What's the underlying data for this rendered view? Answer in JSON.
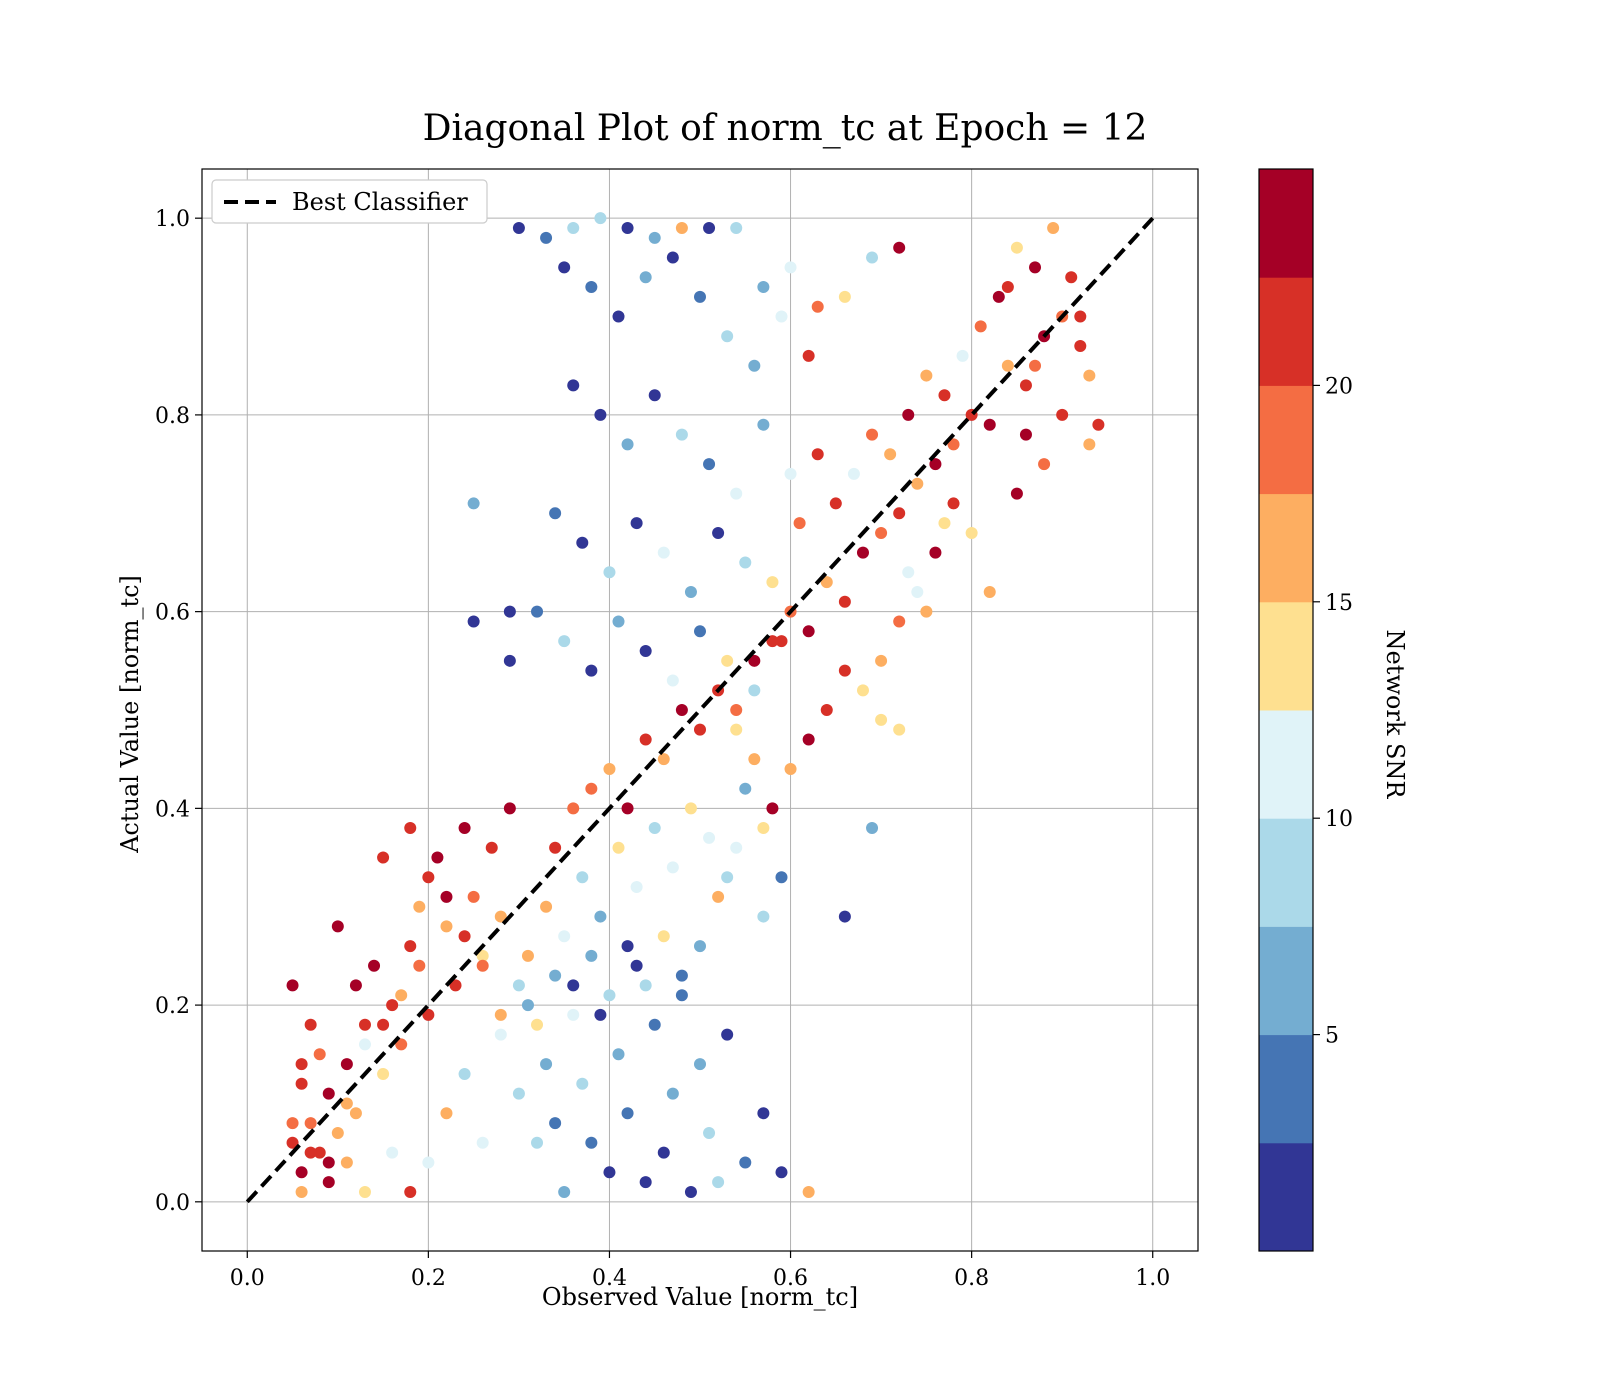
{
  "chart_data": {
    "type": "scatter",
    "title": "Diagonal Plot of norm_tc at Epoch = 12",
    "xlabel": "Observed Value [norm_tc]",
    "ylabel": "Actual Value [norm_tc]",
    "xlim": [
      -0.05,
      1.05
    ],
    "ylim": [
      -0.05,
      1.05
    ],
    "xticks": [
      "0.0",
      "0.2",
      "0.4",
      "0.6",
      "0.8",
      "1.0"
    ],
    "yticks": [
      "0.0",
      "0.2",
      "0.4",
      "0.6",
      "0.8",
      "1.0"
    ],
    "grid": true,
    "legend": {
      "position": "top-left",
      "label": "Best Classifier"
    },
    "reference_line": {
      "from": [
        0,
        0
      ],
      "to": [
        1,
        1
      ],
      "style": "dashed",
      "color": "#000000"
    },
    "colorbar": {
      "label": "Network SNR",
      "range": [
        0,
        25
      ],
      "ticks": [
        "5",
        "10",
        "15",
        "20"
      ],
      "colors": [
        "#313695",
        "#4575b4",
        "#74add1",
        "#abd9e9",
        "#e0f3f8",
        "#fee090",
        "#fdae61",
        "#f46d43",
        "#d73027",
        "#a50026"
      ]
    },
    "points": [
      [
        0.05,
        0.06,
        22
      ],
      [
        0.06,
        0.03,
        23
      ],
      [
        0.07,
        0.08,
        18
      ],
      [
        0.08,
        0.05,
        21
      ],
      [
        0.09,
        0.11,
        24
      ],
      [
        0.1,
        0.07,
        16
      ],
      [
        0.06,
        0.12,
        20
      ],
      [
        0.11,
        0.14,
        23
      ],
      [
        0.12,
        0.09,
        17
      ],
      [
        0.13,
        0.18,
        22
      ],
      [
        0.08,
        0.15,
        19
      ],
      [
        0.15,
        0.13,
        14
      ],
      [
        0.16,
        0.2,
        21
      ],
      [
        0.14,
        0.24,
        23
      ],
      [
        0.17,
        0.16,
        18
      ],
      [
        0.18,
        0.26,
        20
      ],
      [
        0.19,
        0.3,
        16
      ],
      [
        0.2,
        0.19,
        22
      ],
      [
        0.21,
        0.35,
        24
      ],
      [
        0.22,
        0.28,
        15
      ],
      [
        0.23,
        0.22,
        21
      ],
      [
        0.24,
        0.38,
        23
      ],
      [
        0.25,
        0.31,
        19
      ],
      [
        0.26,
        0.25,
        13
      ],
      [
        0.27,
        0.36,
        22
      ],
      [
        0.28,
        0.29,
        17
      ],
      [
        0.29,
        0.4,
        24
      ],
      [
        0.1,
        0.28,
        23
      ],
      [
        0.12,
        0.22,
        24
      ],
      [
        0.15,
        0.35,
        21
      ],
      [
        0.18,
        0.38,
        20
      ],
      [
        0.05,
        0.22,
        23
      ],
      [
        0.07,
        0.18,
        22
      ],
      [
        0.09,
        0.02,
        24
      ],
      [
        0.06,
        0.01,
        16
      ],
      [
        0.11,
        0.04,
        15
      ],
      [
        0.13,
        0.01,
        13
      ],
      [
        0.16,
        0.05,
        12
      ],
      [
        0.18,
        0.01,
        21
      ],
      [
        0.2,
        0.04,
        10
      ],
      [
        0.22,
        0.09,
        16
      ],
      [
        0.24,
        0.13,
        9
      ],
      [
        0.26,
        0.06,
        12
      ],
      [
        0.28,
        0.17,
        11
      ],
      [
        0.3,
        0.11,
        8
      ],
      [
        0.31,
        0.2,
        7
      ],
      [
        0.32,
        0.06,
        9
      ],
      [
        0.33,
        0.14,
        5
      ],
      [
        0.34,
        0.08,
        3
      ],
      [
        0.35,
        0.01,
        6
      ],
      [
        0.36,
        0.22,
        2
      ],
      [
        0.37,
        0.12,
        8
      ],
      [
        0.38,
        0.06,
        4
      ],
      [
        0.39,
        0.19,
        1
      ],
      [
        0.4,
        0.03,
        2
      ],
      [
        0.41,
        0.15,
        5
      ],
      [
        0.42,
        0.09,
        3
      ],
      [
        0.43,
        0.24,
        1
      ],
      [
        0.44,
        0.02,
        2
      ],
      [
        0.45,
        0.18,
        4
      ],
      [
        0.46,
        0.05,
        1
      ],
      [
        0.47,
        0.11,
        6
      ],
      [
        0.48,
        0.21,
        3
      ],
      [
        0.49,
        0.01,
        2
      ],
      [
        0.5,
        0.14,
        5
      ],
      [
        0.51,
        0.07,
        9
      ],
      [
        0.52,
        0.02,
        8
      ],
      [
        0.53,
        0.17,
        2
      ],
      [
        0.55,
        0.04,
        3
      ],
      [
        0.57,
        0.09,
        1
      ],
      [
        0.59,
        0.03,
        2
      ],
      [
        0.62,
        0.01,
        16
      ],
      [
        0.31,
        0.25,
        15
      ],
      [
        0.33,
        0.3,
        17
      ],
      [
        0.35,
        0.27,
        12
      ],
      [
        0.37,
        0.33,
        9
      ],
      [
        0.39,
        0.29,
        7
      ],
      [
        0.41,
        0.36,
        13
      ],
      [
        0.43,
        0.32,
        10
      ],
      [
        0.45,
        0.38,
        8
      ],
      [
        0.47,
        0.34,
        11
      ],
      [
        0.49,
        0.4,
        14
      ],
      [
        0.51,
        0.37,
        12
      ],
      [
        0.53,
        0.33,
        9
      ],
      [
        0.55,
        0.42,
        7
      ],
      [
        0.57,
        0.38,
        13
      ],
      [
        0.34,
        0.36,
        22
      ],
      [
        0.36,
        0.4,
        19
      ],
      [
        0.38,
        0.42,
        18
      ],
      [
        0.4,
        0.44,
        16
      ],
      [
        0.42,
        0.4,
        23
      ],
      [
        0.44,
        0.47,
        21
      ],
      [
        0.46,
        0.45,
        17
      ],
      [
        0.48,
        0.5,
        24
      ],
      [
        0.5,
        0.48,
        20
      ],
      [
        0.52,
        0.52,
        22
      ],
      [
        0.54,
        0.5,
        18
      ],
      [
        0.56,
        0.55,
        24
      ],
      [
        0.58,
        0.57,
        21
      ],
      [
        0.6,
        0.6,
        19
      ],
      [
        0.62,
        0.58,
        23
      ],
      [
        0.64,
        0.63,
        17
      ],
      [
        0.66,
        0.61,
        22
      ],
      [
        0.68,
        0.66,
        24
      ],
      [
        0.7,
        0.68,
        18
      ],
      [
        0.72,
        0.7,
        21
      ],
      [
        0.74,
        0.73,
        16
      ],
      [
        0.76,
        0.75,
        23
      ],
      [
        0.78,
        0.77,
        19
      ],
      [
        0.8,
        0.8,
        22
      ],
      [
        0.82,
        0.79,
        24
      ],
      [
        0.84,
        0.85,
        17
      ],
      [
        0.86,
        0.83,
        21
      ],
      [
        0.88,
        0.88,
        23
      ],
      [
        0.9,
        0.9,
        18
      ],
      [
        0.92,
        0.87,
        22
      ],
      [
        0.87,
        0.95,
        24
      ],
      [
        0.89,
        0.99,
        16
      ],
      [
        0.91,
        0.94,
        20
      ],
      [
        0.85,
        0.97,
        13
      ],
      [
        0.83,
        0.92,
        23
      ],
      [
        0.81,
        0.89,
        18
      ],
      [
        0.79,
        0.86,
        12
      ],
      [
        0.77,
        0.82,
        21
      ],
      [
        0.75,
        0.84,
        17
      ],
      [
        0.73,
        0.8,
        24
      ],
      [
        0.71,
        0.76,
        15
      ],
      [
        0.69,
        0.78,
        19
      ],
      [
        0.67,
        0.74,
        11
      ],
      [
        0.65,
        0.71,
        22
      ],
      [
        0.82,
        0.62,
        16
      ],
      [
        0.8,
        0.68,
        14
      ],
      [
        0.78,
        0.71,
        21
      ],
      [
        0.76,
        0.66,
        23
      ],
      [
        0.74,
        0.62,
        12
      ],
      [
        0.72,
        0.59,
        18
      ],
      [
        0.7,
        0.55,
        15
      ],
      [
        0.68,
        0.52,
        13
      ],
      [
        0.66,
        0.54,
        22
      ],
      [
        0.64,
        0.5,
        20
      ],
      [
        0.62,
        0.47,
        24
      ],
      [
        0.6,
        0.44,
        16
      ],
      [
        0.58,
        0.4,
        23
      ],
      [
        0.56,
        0.45,
        17
      ],
      [
        0.54,
        0.48,
        14
      ],
      [
        0.85,
        0.72,
        23
      ],
      [
        0.88,
        0.75,
        18
      ],
      [
        0.9,
        0.8,
        21
      ],
      [
        0.93,
        0.84,
        17
      ],
      [
        0.94,
        0.79,
        20
      ],
      [
        0.93,
        0.77,
        16
      ],
      [
        0.92,
        0.9,
        22
      ],
      [
        0.86,
        0.78,
        24
      ],
      [
        0.84,
        0.93,
        22
      ],
      [
        0.87,
        0.85,
        19
      ],
      [
        0.72,
        0.48,
        13
      ],
      [
        0.7,
        0.49,
        14
      ],
      [
        0.75,
        0.6,
        16
      ],
      [
        0.73,
        0.64,
        10
      ],
      [
        0.77,
        0.69,
        13
      ],
      [
        0.3,
        0.99,
        2
      ],
      [
        0.33,
        0.98,
        3
      ],
      [
        0.36,
        0.99,
        8
      ],
      [
        0.39,
        1.0,
        9
      ],
      [
        0.42,
        0.99,
        2
      ],
      [
        0.45,
        0.98,
        6
      ],
      [
        0.48,
        0.99,
        17
      ],
      [
        0.51,
        0.99,
        1
      ],
      [
        0.54,
        0.99,
        9
      ],
      [
        0.57,
        0.93,
        7
      ],
      [
        0.6,
        0.95,
        11
      ],
      [
        0.63,
        0.91,
        19
      ],
      [
        0.66,
        0.92,
        13
      ],
      [
        0.69,
        0.96,
        8
      ],
      [
        0.72,
        0.97,
        24
      ],
      [
        0.35,
        0.95,
        1
      ],
      [
        0.38,
        0.93,
        3
      ],
      [
        0.41,
        0.9,
        2
      ],
      [
        0.44,
        0.94,
        5
      ],
      [
        0.47,
        0.96,
        1
      ],
      [
        0.5,
        0.92,
        4
      ],
      [
        0.53,
        0.88,
        9
      ],
      [
        0.56,
        0.85,
        6
      ],
      [
        0.59,
        0.9,
        12
      ],
      [
        0.62,
        0.86,
        20
      ],
      [
        0.36,
        0.83,
        2
      ],
      [
        0.39,
        0.8,
        1
      ],
      [
        0.42,
        0.77,
        5
      ],
      [
        0.45,
        0.82,
        2
      ],
      [
        0.48,
        0.78,
        9
      ],
      [
        0.51,
        0.75,
        3
      ],
      [
        0.54,
        0.72,
        12
      ],
      [
        0.57,
        0.79,
        7
      ],
      [
        0.6,
        0.74,
        10
      ],
      [
        0.63,
        0.76,
        21
      ],
      [
        0.34,
        0.7,
        4
      ],
      [
        0.37,
        0.67,
        1
      ],
      [
        0.4,
        0.64,
        8
      ],
      [
        0.43,
        0.69,
        2
      ],
      [
        0.46,
        0.66,
        11
      ],
      [
        0.49,
        0.62,
        5
      ],
      [
        0.52,
        0.68,
        1
      ],
      [
        0.55,
        0.65,
        9
      ],
      [
        0.58,
        0.63,
        13
      ],
      [
        0.61,
        0.69,
        18
      ],
      [
        0.32,
        0.6,
        3
      ],
      [
        0.35,
        0.57,
        9
      ],
      [
        0.38,
        0.54,
        1
      ],
      [
        0.41,
        0.59,
        6
      ],
      [
        0.44,
        0.56,
        2
      ],
      [
        0.47,
        0.53,
        11
      ],
      [
        0.5,
        0.58,
        4
      ],
      [
        0.53,
        0.55,
        14
      ],
      [
        0.56,
        0.52,
        8
      ],
      [
        0.59,
        0.57,
        20
      ],
      [
        0.29,
        0.6,
        1
      ],
      [
        0.25,
        0.59,
        2
      ],
      [
        0.25,
        0.71,
        7
      ],
      [
        0.29,
        0.55,
        2
      ],
      [
        0.66,
        0.29,
        2
      ],
      [
        0.69,
        0.38,
        7
      ],
      [
        0.59,
        0.33,
        3
      ],
      [
        0.57,
        0.29,
        9
      ],
      [
        0.54,
        0.36,
        12
      ],
      [
        0.52,
        0.31,
        16
      ],
      [
        0.5,
        0.26,
        7
      ],
      [
        0.48,
        0.23,
        3
      ],
      [
        0.46,
        0.27,
        13
      ],
      [
        0.44,
        0.22,
        8
      ],
      [
        0.42,
        0.26,
        2
      ],
      [
        0.4,
        0.21,
        9
      ],
      [
        0.38,
        0.25,
        5
      ],
      [
        0.36,
        0.19,
        11
      ],
      [
        0.34,
        0.23,
        7
      ],
      [
        0.32,
        0.18,
        13
      ],
      [
        0.3,
        0.22,
        9
      ],
      [
        0.28,
        0.19,
        16
      ],
      [
        0.26,
        0.24,
        18
      ],
      [
        0.24,
        0.27,
        20
      ],
      [
        0.22,
        0.31,
        23
      ],
      [
        0.2,
        0.33,
        21
      ],
      [
        0.19,
        0.24,
        19
      ],
      [
        0.17,
        0.21,
        15
      ],
      [
        0.15,
        0.18,
        22
      ],
      [
        0.13,
        0.16,
        12
      ],
      [
        0.11,
        0.1,
        17
      ],
      [
        0.09,
        0.04,
        23
      ],
      [
        0.07,
        0.05,
        22
      ],
      [
        0.05,
        0.08,
        18
      ],
      [
        0.06,
        0.14,
        22
      ]
    ]
  }
}
